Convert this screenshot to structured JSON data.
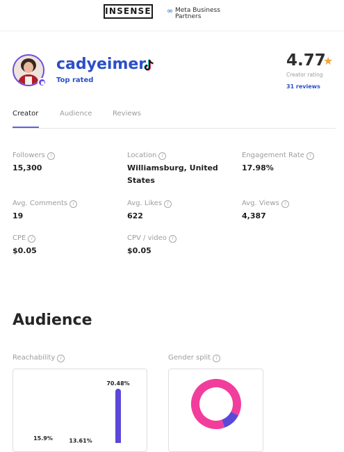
{
  "header": {
    "insense_logo": "INSENSE",
    "meta_line1": "Meta Business",
    "meta_line2": "Partners",
    "meta_logo_icon": "meta-infinity-icon"
  },
  "profile": {
    "username": "cadyeimer",
    "platform_icon": "tiktok-icon",
    "badge": "Top rated",
    "rating": "4.77",
    "rating_label": "Creator rating",
    "reviews": "31 reviews",
    "colors": {
      "accent": "#2b4fc7",
      "star": "#f3a53b",
      "avatar_ring": "#6d4de0"
    }
  },
  "tabs": [
    {
      "label": "Creator",
      "active": true
    },
    {
      "label": "Audience",
      "active": false
    },
    {
      "label": "Reviews",
      "active": false
    }
  ],
  "metrics": [
    {
      "label": "Followers",
      "value": "15,300"
    },
    {
      "label": "Location",
      "value": "Williamsburg, United States"
    },
    {
      "label": "Engagement Rate",
      "value": "17.98%"
    },
    {
      "label": "Avg. Comments",
      "value": "19"
    },
    {
      "label": "Avg. Likes",
      "value": "622"
    },
    {
      "label": "Avg. Views",
      "value": "4,387"
    },
    {
      "label": "CPE",
      "value": "$0.05"
    },
    {
      "label": "CPV / video",
      "value": "$0.05"
    }
  ],
  "audience": {
    "title": "Audience",
    "reachability_label": "Reachability",
    "gender_label": "Gender split"
  },
  "chart_data": [
    {
      "type": "bar",
      "title": "Reachability",
      "values": [
        15.9,
        13.61,
        70.48
      ],
      "value_labels": [
        "15.9%",
        "13.61%",
        "70.48%"
      ],
      "color": "#5b47d8"
    },
    {
      "type": "pie",
      "title": "Gender split",
      "slices": [
        {
          "value": 88,
          "color": "#f23d9c"
        },
        {
          "value": 12,
          "color": "#5b47d8"
        }
      ]
    }
  ]
}
